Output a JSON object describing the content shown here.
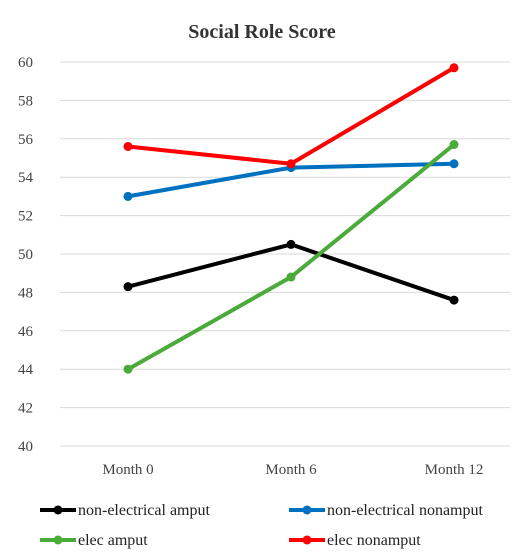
{
  "chart_data": {
    "type": "line",
    "title": "Social Role Score",
    "xlabel": "",
    "ylabel": "",
    "categories": [
      "Month 0",
      "Month 6",
      "Month 12"
    ],
    "ylim": [
      40,
      60
    ],
    "yticks": [
      "40",
      "42",
      "44",
      "46",
      "48",
      "50",
      "52",
      "54",
      "56",
      "58",
      "60"
    ],
    "grid": true,
    "legend_position": "bottom",
    "series": [
      {
        "name": "non-electrical amput",
        "color": "#000000",
        "values": [
          48.3,
          50.5,
          47.6
        ]
      },
      {
        "name": "non-electrical nonamput",
        "color": "#0070C0",
        "values": [
          53.0,
          54.5,
          54.7
        ]
      },
      {
        "name": "elec amput",
        "color": "#4AAA3A",
        "values": [
          44.0,
          48.8,
          55.7
        ]
      },
      {
        "name": "elec nonamput",
        "color": "#FF0000",
        "values": [
          55.6,
          54.7,
          59.7
        ]
      }
    ]
  }
}
